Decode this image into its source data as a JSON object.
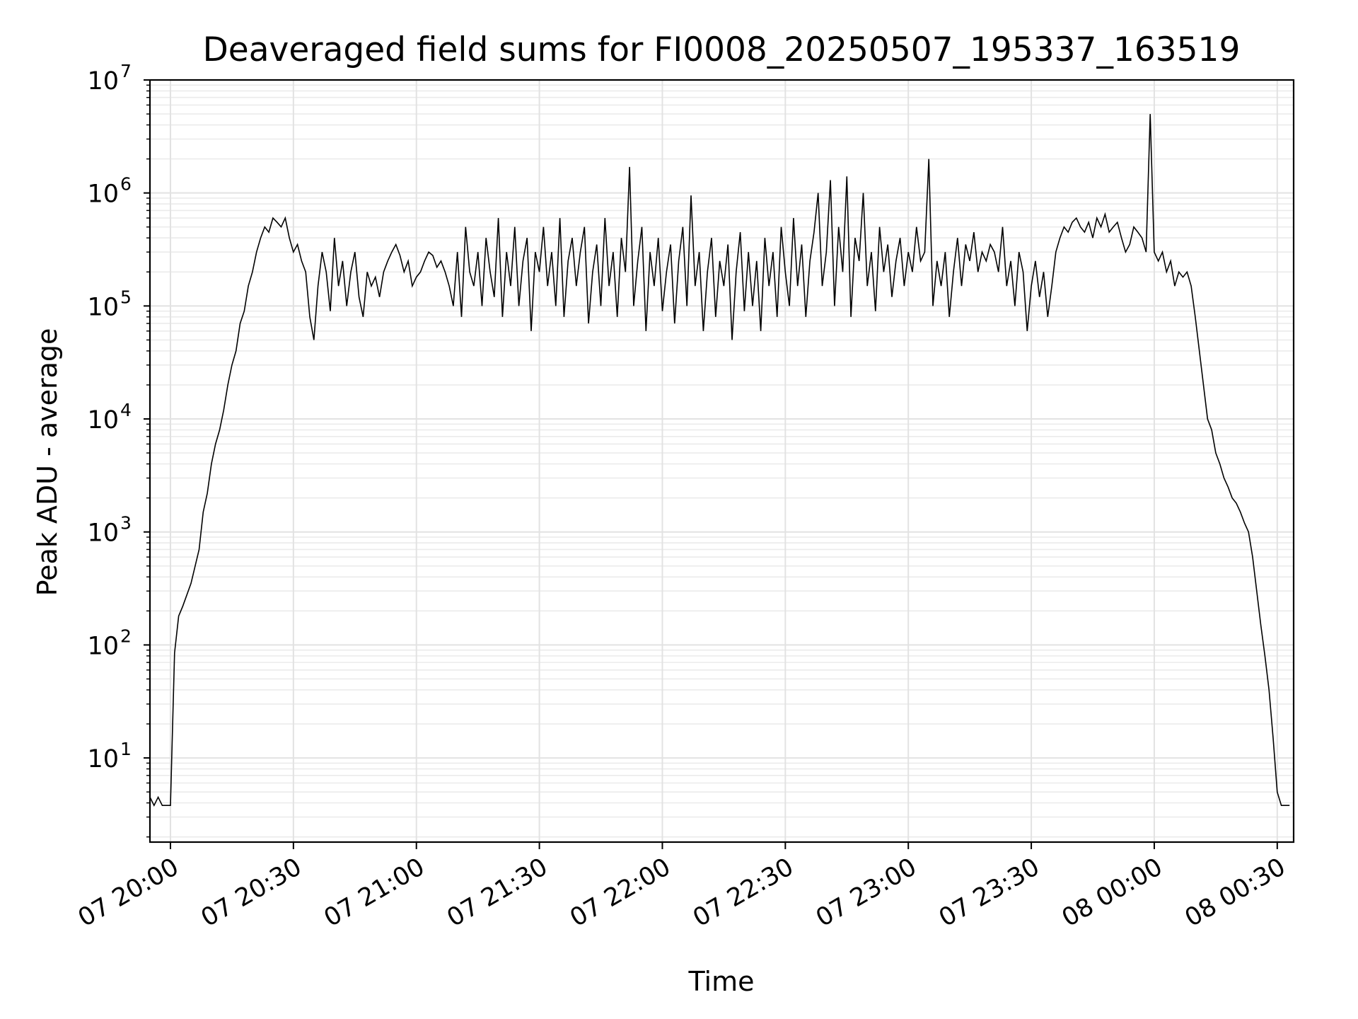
{
  "chart_data": {
    "type": "line",
    "title": "Deaveraged field sums for FI0008_20250507_195337_163519",
    "xlabel": "Time",
    "ylabel": "Peak ADU - average",
    "yscale": "log",
    "ylim": [
      1.8,
      10000000
    ],
    "xlim": [
      "2025-05-07 19:55",
      "2025-05-08 00:34"
    ],
    "grid": true,
    "grid_minor_y": true,
    "line_color": "#000000",
    "x_ticks": [
      "2025-05-07 20:00",
      "2025-05-07 20:30",
      "2025-05-07 21:00",
      "2025-05-07 21:30",
      "2025-05-07 22:00",
      "2025-05-07 22:30",
      "2025-05-07 23:00",
      "2025-05-07 23:30",
      "2025-05-08 00:00",
      "2025-05-08 00:30"
    ],
    "x_tick_labels": [
      "07 20:00",
      "07 20:30",
      "07 21:00",
      "07 21:30",
      "07 22:00",
      "07 22:30",
      "07 23:00",
      "07 23:30",
      "08 00:00",
      "08 00:30"
    ],
    "y_ticks": [
      10,
      100,
      1000,
      10000,
      100000,
      1000000,
      10000000
    ],
    "y_tick_labels": [
      {
        "base": "10",
        "exp": "1"
      },
      {
        "base": "10",
        "exp": "2"
      },
      {
        "base": "10",
        "exp": "3"
      },
      {
        "base": "10",
        "exp": "4"
      },
      {
        "base": "10",
        "exp": "5"
      },
      {
        "base": "10",
        "exp": "6"
      },
      {
        "base": "10",
        "exp": "7"
      }
    ],
    "series": [
      {
        "x": [
          "2025-05-07 19:54",
          "2025-05-07 19:55",
          "2025-05-07 19:56",
          "2025-05-07 19:57",
          "2025-05-07 19:58",
          "2025-05-07 19:59",
          "2025-05-07 20:00",
          "2025-05-07 20:01",
          "2025-05-07 20:02",
          "2025-05-07 20:03",
          "2025-05-07 20:05",
          "2025-05-07 20:07",
          "2025-05-07 20:08",
          "2025-05-07 20:09",
          "2025-05-07 20:10",
          "2025-05-07 20:11",
          "2025-05-07 20:12",
          "2025-05-07 20:13",
          "2025-05-07 20:14",
          "2025-05-07 20:15",
          "2025-05-07 20:16",
          "2025-05-07 20:17",
          "2025-05-07 20:18",
          "2025-05-07 20:19",
          "2025-05-07 20:20",
          "2025-05-07 20:21",
          "2025-05-07 20:22",
          "2025-05-07 20:23",
          "2025-05-07 20:24",
          "2025-05-07 20:25",
          "2025-05-07 20:26",
          "2025-05-07 20:27",
          "2025-05-07 20:28",
          "2025-05-07 20:29",
          "2025-05-07 20:30",
          "2025-05-07 20:31",
          "2025-05-07 20:32",
          "2025-05-07 20:33",
          "2025-05-07 20:34",
          "2025-05-07 20:35",
          "2025-05-07 20:36",
          "2025-05-07 20:37",
          "2025-05-07 20:38",
          "2025-05-07 20:39",
          "2025-05-07 20:40",
          "2025-05-07 20:41",
          "2025-05-07 20:42",
          "2025-05-07 20:43",
          "2025-05-07 20:44",
          "2025-05-07 20:45",
          "2025-05-07 20:46",
          "2025-05-07 20:47",
          "2025-05-07 20:48",
          "2025-05-07 20:49",
          "2025-05-07 20:50",
          "2025-05-07 20:51",
          "2025-05-07 20:52",
          "2025-05-07 20:53",
          "2025-05-07 20:54",
          "2025-05-07 20:55",
          "2025-05-07 20:56",
          "2025-05-07 20:57",
          "2025-05-07 20:58",
          "2025-05-07 20:59",
          "2025-05-07 21:00",
          "2025-05-07 21:01",
          "2025-05-07 21:02",
          "2025-05-07 21:03",
          "2025-05-07 21:04",
          "2025-05-07 21:05",
          "2025-05-07 21:06",
          "2025-05-07 21:07",
          "2025-05-07 21:08",
          "2025-05-07 21:09",
          "2025-05-07 21:10",
          "2025-05-07 21:11",
          "2025-05-07 21:12",
          "2025-05-07 21:13",
          "2025-05-07 21:14",
          "2025-05-07 21:15",
          "2025-05-07 21:16",
          "2025-05-07 21:17",
          "2025-05-07 21:18",
          "2025-05-07 21:19",
          "2025-05-07 21:20",
          "2025-05-07 21:21",
          "2025-05-07 21:22",
          "2025-05-07 21:23",
          "2025-05-07 21:24",
          "2025-05-07 21:25",
          "2025-05-07 21:26",
          "2025-05-07 21:27",
          "2025-05-07 21:28",
          "2025-05-07 21:29",
          "2025-05-07 21:30",
          "2025-05-07 21:31",
          "2025-05-07 21:32",
          "2025-05-07 21:33",
          "2025-05-07 21:34",
          "2025-05-07 21:35",
          "2025-05-07 21:36",
          "2025-05-07 21:37",
          "2025-05-07 21:38",
          "2025-05-07 21:39",
          "2025-05-07 21:40",
          "2025-05-07 21:41",
          "2025-05-07 21:42",
          "2025-05-07 21:43",
          "2025-05-07 21:44",
          "2025-05-07 21:45",
          "2025-05-07 21:46",
          "2025-05-07 21:47",
          "2025-05-07 21:48",
          "2025-05-07 21:49",
          "2025-05-07 21:50",
          "2025-05-07 21:51",
          "2025-05-07 21:52",
          "2025-05-07 21:53",
          "2025-05-07 21:54",
          "2025-05-07 21:55",
          "2025-05-07 21:56",
          "2025-05-07 21:57",
          "2025-05-07 21:58",
          "2025-05-07 21:59",
          "2025-05-07 22:00",
          "2025-05-07 22:01",
          "2025-05-07 22:02",
          "2025-05-07 22:03",
          "2025-05-07 22:04",
          "2025-05-07 22:05",
          "2025-05-07 22:06",
          "2025-05-07 22:07",
          "2025-05-07 22:08",
          "2025-05-07 22:09",
          "2025-05-07 22:10",
          "2025-05-07 22:11",
          "2025-05-07 22:12",
          "2025-05-07 22:13",
          "2025-05-07 22:14",
          "2025-05-07 22:15",
          "2025-05-07 22:16",
          "2025-05-07 22:17",
          "2025-05-07 22:18",
          "2025-05-07 22:19",
          "2025-05-07 22:20",
          "2025-05-07 22:21",
          "2025-05-07 22:22",
          "2025-05-07 22:23",
          "2025-05-07 22:24",
          "2025-05-07 22:25",
          "2025-05-07 22:26",
          "2025-05-07 22:27",
          "2025-05-07 22:28",
          "2025-05-07 22:29",
          "2025-05-07 22:30",
          "2025-05-07 22:31",
          "2025-05-07 22:32",
          "2025-05-07 22:33",
          "2025-05-07 22:34",
          "2025-05-07 22:35",
          "2025-05-07 22:36",
          "2025-05-07 22:37",
          "2025-05-07 22:38",
          "2025-05-07 22:39",
          "2025-05-07 22:40",
          "2025-05-07 22:41",
          "2025-05-07 22:42",
          "2025-05-07 22:43",
          "2025-05-07 22:44",
          "2025-05-07 22:45",
          "2025-05-07 22:46",
          "2025-05-07 22:47",
          "2025-05-07 22:48",
          "2025-05-07 22:49",
          "2025-05-07 22:50",
          "2025-05-07 22:51",
          "2025-05-07 22:52",
          "2025-05-07 22:53",
          "2025-05-07 22:54",
          "2025-05-07 22:55",
          "2025-05-07 22:56",
          "2025-05-07 22:57",
          "2025-05-07 22:58",
          "2025-05-07 22:59",
          "2025-05-07 23:00",
          "2025-05-07 23:01",
          "2025-05-07 23:02",
          "2025-05-07 23:03",
          "2025-05-07 23:04",
          "2025-05-07 23:05",
          "2025-05-07 23:06",
          "2025-05-07 23:07",
          "2025-05-07 23:08",
          "2025-05-07 23:09",
          "2025-05-07 23:10",
          "2025-05-07 23:11",
          "2025-05-07 23:12",
          "2025-05-07 23:13",
          "2025-05-07 23:14",
          "2025-05-07 23:15",
          "2025-05-07 23:16",
          "2025-05-07 23:17",
          "2025-05-07 23:18",
          "2025-05-07 23:19",
          "2025-05-07 23:20",
          "2025-05-07 23:21",
          "2025-05-07 23:22",
          "2025-05-07 23:23",
          "2025-05-07 23:24",
          "2025-05-07 23:25",
          "2025-05-07 23:26",
          "2025-05-07 23:27",
          "2025-05-07 23:28",
          "2025-05-07 23:29",
          "2025-05-07 23:30",
          "2025-05-07 23:31",
          "2025-05-07 23:32",
          "2025-05-07 23:33",
          "2025-05-07 23:34",
          "2025-05-07 23:35",
          "2025-05-07 23:36",
          "2025-05-07 23:37",
          "2025-05-07 23:38",
          "2025-05-07 23:39",
          "2025-05-07 23:40",
          "2025-05-07 23:41",
          "2025-05-07 23:42",
          "2025-05-07 23:43",
          "2025-05-07 23:44",
          "2025-05-07 23:45",
          "2025-05-07 23:46",
          "2025-05-07 23:47",
          "2025-05-07 23:48",
          "2025-05-07 23:49",
          "2025-05-07 23:50",
          "2025-05-07 23:51",
          "2025-05-07 23:52",
          "2025-05-07 23:53",
          "2025-05-07 23:54",
          "2025-05-07 23:55",
          "2025-05-07 23:56",
          "2025-05-07 23:57",
          "2025-05-07 23:58",
          "2025-05-07 23:59",
          "2025-05-08 00:00",
          "2025-05-08 00:01",
          "2025-05-08 00:02",
          "2025-05-08 00:03",
          "2025-05-08 00:04",
          "2025-05-08 00:05",
          "2025-05-08 00:06",
          "2025-05-08 00:07",
          "2025-05-08 00:08",
          "2025-05-08 00:09",
          "2025-05-08 00:10",
          "2025-05-08 00:11",
          "2025-05-08 00:12",
          "2025-05-08 00:13",
          "2025-05-08 00:14",
          "2025-05-08 00:15",
          "2025-05-08 00:16",
          "2025-05-08 00:17",
          "2025-05-08 00:18",
          "2025-05-08 00:19",
          "2025-05-08 00:20",
          "2025-05-08 00:21",
          "2025-05-08 00:22",
          "2025-05-08 00:23",
          "2025-05-08 00:24",
          "2025-05-08 00:25",
          "2025-05-08 00:26",
          "2025-05-08 00:27",
          "2025-05-08 00:28",
          "2025-05-08 00:29",
          "2025-05-08 00:30",
          "2025-05-08 00:31",
          "2025-05-08 00:32",
          "2025-05-08 00:33"
        ],
        "y": [
          3.8,
          4.5,
          3.8,
          4.5,
          3.8,
          3.8,
          3.8,
          85,
          180,
          220,
          350,
          700,
          1500,
          2200,
          4000,
          6000,
          8000,
          12000,
          20000,
          30000,
          40000,
          70000,
          90000,
          150000,
          200000,
          300000,
          400000,
          500000,
          450000,
          600000,
          550000,
          500000,
          600000,
          400000,
          300000,
          350000,
          250000,
          200000,
          80000,
          50000,
          150000,
          300000,
          200000,
          90000,
          400000,
          150000,
          250000,
          100000,
          200000,
          300000,
          120000,
          80000,
          200000,
          150000,
          180000,
          120000,
          200000,
          250000,
          300000,
          350000,
          280000,
          200000,
          250000,
          150000,
          180000,
          200000,
          250000,
          300000,
          280000,
          220000,
          250000,
          200000,
          150000,
          100000,
          300000,
          80000,
          500000,
          200000,
          150000,
          300000,
          100000,
          400000,
          200000,
          120000,
          600000,
          80000,
          300000,
          150000,
          500000,
          100000,
          250000,
          400000,
          60000,
          300000,
          200000,
          500000,
          150000,
          300000,
          100000,
          600000,
          80000,
          250000,
          400000,
          150000,
          300000,
          500000,
          70000,
          200000,
          350000,
          100000,
          600000,
          150000,
          300000,
          80000,
          400000,
          200000,
          1700000,
          100000,
          250000,
          500000,
          60000,
          300000,
          150000,
          400000,
          90000,
          200000,
          350000,
          70000,
          250000,
          500000,
          100000,
          950000,
          150000,
          300000,
          60000,
          200000,
          400000,
          80000,
          250000,
          150000,
          350000,
          50000,
          200000,
          450000,
          90000,
          300000,
          100000,
          250000,
          60000,
          400000,
          150000,
          300000,
          80000,
          500000,
          200000,
          100000,
          600000,
          150000,
          350000,
          80000,
          250000,
          450000,
          1000000,
          150000,
          300000,
          1300000,
          100000,
          500000,
          200000,
          1400000,
          80000,
          400000,
          250000,
          1000000,
          150000,
          300000,
          90000,
          500000,
          200000,
          350000,
          120000,
          250000,
          400000,
          150000,
          300000,
          200000,
          500000,
          250000,
          300000,
          2000000,
          100000,
          250000,
          150000,
          300000,
          80000,
          200000,
          400000,
          150000,
          350000,
          250000,
          450000,
          200000,
          300000,
          250000,
          350000,
          300000,
          200000,
          500000,
          150000,
          250000,
          100000,
          300000,
          200000,
          60000,
          150000,
          250000,
          120000,
          200000,
          80000,
          150000,
          300000,
          400000,
          500000,
          450000,
          550000,
          600000,
          500000,
          450000,
          550000,
          400000,
          600000,
          500000,
          650000,
          450000,
          500000,
          550000,
          400000,
          300000,
          350000,
          500000,
          450000,
          400000,
          300000,
          5000000,
          300000,
          250000,
          300000,
          200000,
          250000,
          150000,
          200000,
          180000,
          200000,
          150000,
          80000,
          40000,
          20000,
          10000,
          8000,
          5000,
          4000,
          3000,
          2500,
          2000,
          1800,
          1500,
          1200,
          1000,
          600,
          300,
          150,
          80,
          40,
          15,
          5,
          3.8,
          3.8,
          3.8
        ]
      }
    ]
  }
}
